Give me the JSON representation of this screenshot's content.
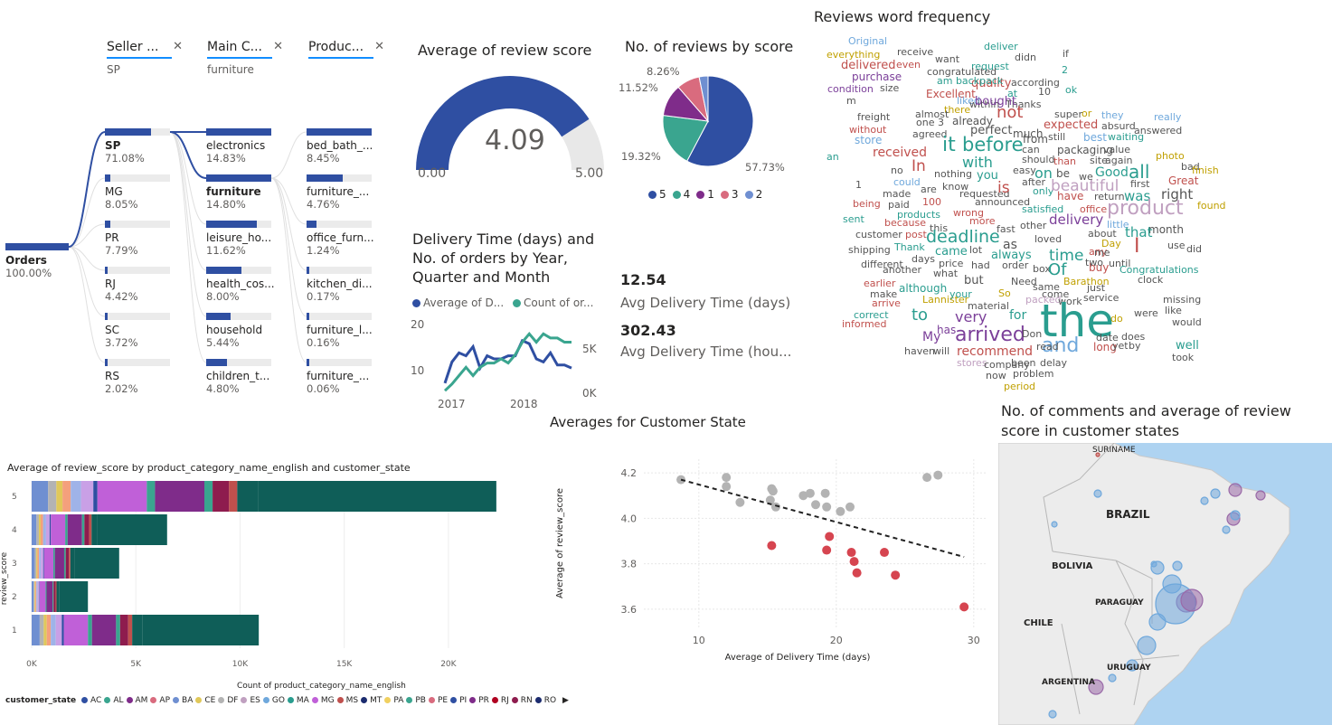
{
  "decomp": {
    "filters": [
      {
        "title": "Seller ...",
        "value": "SP"
      },
      {
        "title": "Main C...",
        "value": "furniture"
      },
      {
        "title": "Produc...",
        "value": ""
      }
    ],
    "root": {
      "label": "Orders",
      "pct": "100.00%"
    },
    "col1": [
      {
        "label": "SP",
        "pct": "71.08%",
        "fill": 0.7108,
        "bold": true
      },
      {
        "label": "MG",
        "pct": "8.05%",
        "fill": 0.0805
      },
      {
        "label": "PR",
        "pct": "7.79%",
        "fill": 0.0779
      },
      {
        "label": "RJ",
        "pct": "4.42%",
        "fill": 0.0442
      },
      {
        "label": "SC",
        "pct": "3.72%",
        "fill": 0.0372
      },
      {
        "label": "RS",
        "pct": "2.02%",
        "fill": 0.0202
      }
    ],
    "col2": [
      {
        "label": "electronics",
        "pct": "14.83%",
        "fill": 1.0
      },
      {
        "label": "furniture",
        "pct": "14.80%",
        "fill": 0.998,
        "bold": true
      },
      {
        "label": "leisure_ho...",
        "pct": "11.62%",
        "fill": 0.78
      },
      {
        "label": "health_cos...",
        "pct": "8.00%",
        "fill": 0.54
      },
      {
        "label": "household",
        "pct": "5.44%",
        "fill": 0.37
      },
      {
        "label": "children_t...",
        "pct": "4.80%",
        "fill": 0.32
      }
    ],
    "col3": [
      {
        "label": "bed_bath_...",
        "pct": "8.45%",
        "fill": 1.0
      },
      {
        "label": "furniture_...",
        "pct": "4.76%",
        "fill": 0.56
      },
      {
        "label": "office_furn...",
        "pct": "1.24%",
        "fill": 0.15
      },
      {
        "label": "kitchen_di...",
        "pct": "0.17%",
        "fill": 0.03
      },
      {
        "label": "furniture_l...",
        "pct": "0.16%",
        "fill": 0.03
      },
      {
        "label": "furniture_...",
        "pct": "0.06%",
        "fill": 0.02
      }
    ]
  },
  "gauge": {
    "title": "Average of review score",
    "value": 4.09,
    "value_text": "4.09",
    "min_text": "0.00",
    "max_text": "5.00",
    "min": 0,
    "max": 5,
    "color": "#2f4fa2"
  },
  "pie": {
    "title": "No. of reviews by score",
    "labels": {
      "s5": "57.73%",
      "s4": "19.32%",
      "s1": "11.52%",
      "s3": "8.26%"
    },
    "legend": [
      "5",
      "4",
      "1",
      "3",
      "2"
    ]
  },
  "wordcloud": {
    "title": "Reviews word frequency"
  },
  "kpi": {
    "v1": "12.54",
    "l1": "Avg Delivery Time (days)",
    "v2": "302.43",
    "l2": "Avg Delivery Time (hou..."
  },
  "linechart": {
    "title": "Delivery Time (days) and No. of orders by Year, Quarter and Month",
    "legend1": "Average of D...",
    "legend2": "Count of or...",
    "yl_ticks": [
      "20",
      "10"
    ],
    "yr_ticks": [
      "5K",
      "0K"
    ],
    "x_ticks": [
      "2017",
      "2018"
    ]
  },
  "scatter_title": "Averages for Customer State",
  "stacked": {
    "title": "Average of review_score by product_category_name_english and customer_state",
    "ylabel": "review_score",
    "xlabel": "Count of product_category_name_english",
    "legend_title": "customer_state",
    "legend_items": [
      "AC",
      "AL",
      "AM",
      "AP",
      "BA",
      "CE",
      "DF",
      "ES",
      "GO",
      "MA",
      "MG",
      "MS",
      "MT",
      "PA",
      "PB",
      "PE",
      "PI",
      "PR",
      "RJ",
      "RN",
      "RO"
    ]
  },
  "map": {
    "title": "No. of comments and average of review score in customer states",
    "labels": {
      "suriname": "SURINAME",
      "brazil": "BRAZIL",
      "bolivia": "BOLIVIA",
      "paraguay": "PARAGUAY",
      "chile": "CHILE",
      "uruguay": "URUGUAY",
      "argentina": "ARGENTINA"
    }
  },
  "chart_data": [
    {
      "type": "pie",
      "title": "No. of reviews by score",
      "categories": [
        "5",
        "4",
        "1",
        "3",
        "2"
      ],
      "values": [
        57.73,
        19.32,
        11.52,
        8.26,
        3.17
      ],
      "colors": [
        "#2f4fa2",
        "#3aa58f",
        "#7f2c8a",
        "#d96b7e",
        "#6f8fd1"
      ]
    },
    {
      "type": "scatter",
      "title": "Averages for Customer State",
      "xlabel": "Average of Delivery Time (days)",
      "ylabel": "Average of review_score",
      "xlim": [
        6,
        31
      ],
      "ylim": [
        3.52,
        4.26
      ],
      "x_ticks": [
        10,
        20,
        30
      ],
      "y_ticks": [
        3.6,
        3.8,
        4.0,
        4.2
      ],
      "series": [
        {
          "color": "#b3b3b3",
          "x": [
            8.7,
            12,
            12,
            13,
            15.2,
            15.3,
            15.4,
            15.6,
            17.6,
            18.1,
            18.5,
            19.2,
            19.3,
            20.3,
            21,
            26.6,
            27.4
          ],
          "y": [
            4.17,
            4.18,
            4.14,
            4.07,
            4.08,
            4.13,
            4.12,
            4.05,
            4.1,
            4.11,
            4.06,
            4.11,
            4.05,
            4.03,
            4.05,
            4.18,
            4.19
          ]
        },
        {
          "color": "#d64550",
          "x": [
            15.3,
            19.3,
            19.5,
            21.1,
            21.3,
            21.5,
            23.5,
            24.3,
            29.3
          ],
          "y": [
            3.88,
            3.86,
            3.92,
            3.85,
            3.81,
            3.76,
            3.85,
            3.75,
            3.61
          ]
        }
      ],
      "trend": {
        "x": [
          8.7,
          29.3
        ],
        "y": [
          4.17,
          3.83
        ]
      }
    },
    {
      "type": "line",
      "title": "Delivery Time (days) and No. of orders by Year, Quarter and Month",
      "x_ticks": [
        "2017",
        "2018"
      ],
      "series": [
        {
          "name": "Average of D...",
          "color": "#2f4fa2",
          "values": [
            3,
            10,
            13,
            12,
            15,
            8,
            12,
            11,
            11,
            12,
            12,
            17,
            16,
            11,
            10,
            13,
            9,
            9,
            8
          ]
        },
        {
          "name": "Count of or...",
          "color": "#3aa58f",
          "values": [
            0.2,
            1,
            2,
            3,
            2,
            3,
            3.5,
            3.5,
            4,
            3.5,
            4.5,
            6,
            7,
            6,
            7,
            6.5,
            6.5,
            6,
            6
          ]
        }
      ],
      "ylim_left": [
        0,
        22
      ],
      "ylim_right": [
        0,
        8
      ]
    },
    {
      "type": "bar",
      "title": "Average of review_score by product_category_name_english and customer_state",
      "categories": [
        "5",
        "4",
        "3",
        "2",
        "1"
      ],
      "values": [
        22300,
        6500,
        4200,
        2700,
        10900
      ],
      "xlim": [
        0,
        23000
      ],
      "x_ticks": [
        "0K",
        "5K",
        "10K",
        "15K",
        "20K"
      ]
    },
    {
      "type": "gauge",
      "value": 4.09,
      "min": 0,
      "max": 5
    }
  ]
}
